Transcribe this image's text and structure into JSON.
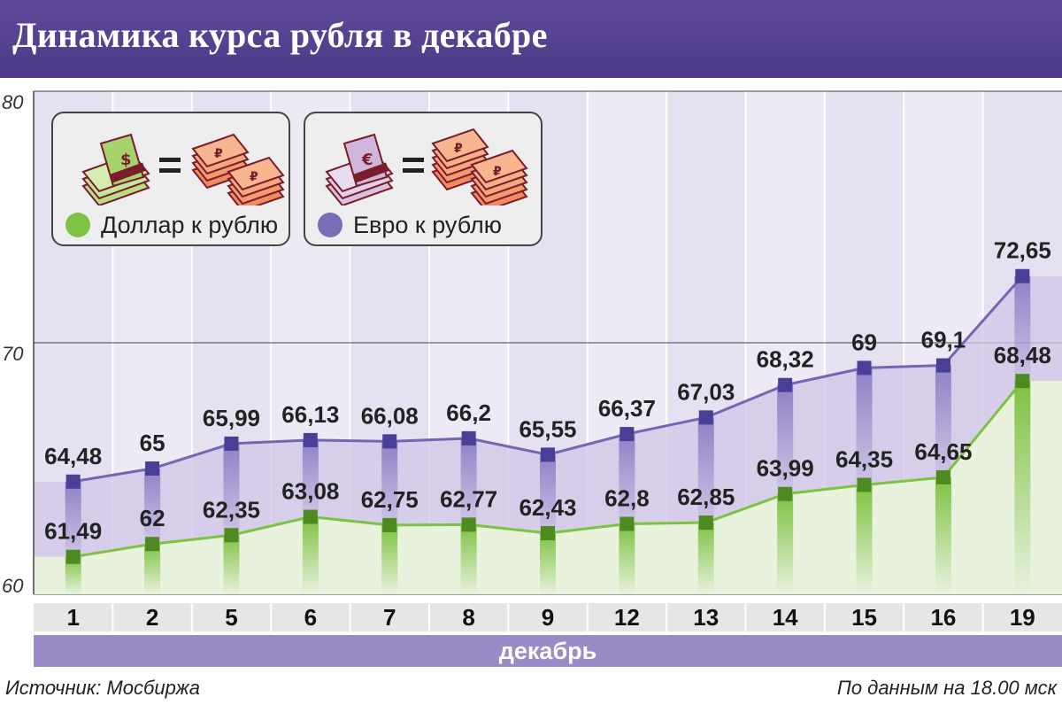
{
  "header": {
    "title": "Динамика курса рубля в декабре"
  },
  "legend": {
    "usd": {
      "label": "Доллар к рублю",
      "color": "#7dc242",
      "icon": "dollar-banknotes-equals-ruble-banknotes-icon"
    },
    "eur": {
      "label": "Евро к рублю",
      "color": "#7b6cb8",
      "icon": "euro-banknotes-equals-ruble-banknotes-icon"
    }
  },
  "footer": {
    "source": "Источник: Мосбиржа",
    "note": "По данным на 18.00 мск"
  },
  "colors": {
    "header": "#503d8c",
    "usd_line": "#7dc242",
    "usd_marker": "#4e8a22",
    "eur_line": "#7664b4",
    "eur_marker": "#4a3f96",
    "month_band": "#9a8ac8",
    "axis_label_band": "#e6e6e6"
  },
  "chart_data": {
    "type": "line",
    "title": "Динамика курса рубля в декабре",
    "categories": [
      "1",
      "2",
      "5",
      "6",
      "7",
      "8",
      "9",
      "12",
      "13",
      "14",
      "15",
      "16",
      "19"
    ],
    "xlabel": "декабрь",
    "ylabel": "",
    "ylim": [
      60,
      80
    ],
    "yticks": [
      "60",
      "70",
      "80"
    ],
    "grid": true,
    "legend_position": "top-left",
    "series": [
      {
        "name": "Доллар к рублю",
        "values": [
          61.49,
          62,
          62.35,
          63.08,
          62.75,
          62.77,
          62.43,
          62.8,
          62.85,
          63.99,
          64.35,
          64.65,
          68.48
        ],
        "labels": [
          "61,49",
          "62",
          "62,35",
          "63,08",
          "62,75",
          "62,77",
          "62,43",
          "62,8",
          "62,85",
          "63,99",
          "64,35",
          "64,65",
          "68,48"
        ]
      },
      {
        "name": "Евро к рублю",
        "values": [
          64.48,
          65,
          65.99,
          66.13,
          66.08,
          66.2,
          65.55,
          66.37,
          67.03,
          68.32,
          69,
          69.1,
          72.65
        ],
        "labels": [
          "64,48",
          "65",
          "65,99",
          "66,13",
          "66,08",
          "66,2",
          "65,55",
          "66,37",
          "67,03",
          "68,32",
          "69",
          "69,1",
          "72,65"
        ]
      }
    ]
  }
}
